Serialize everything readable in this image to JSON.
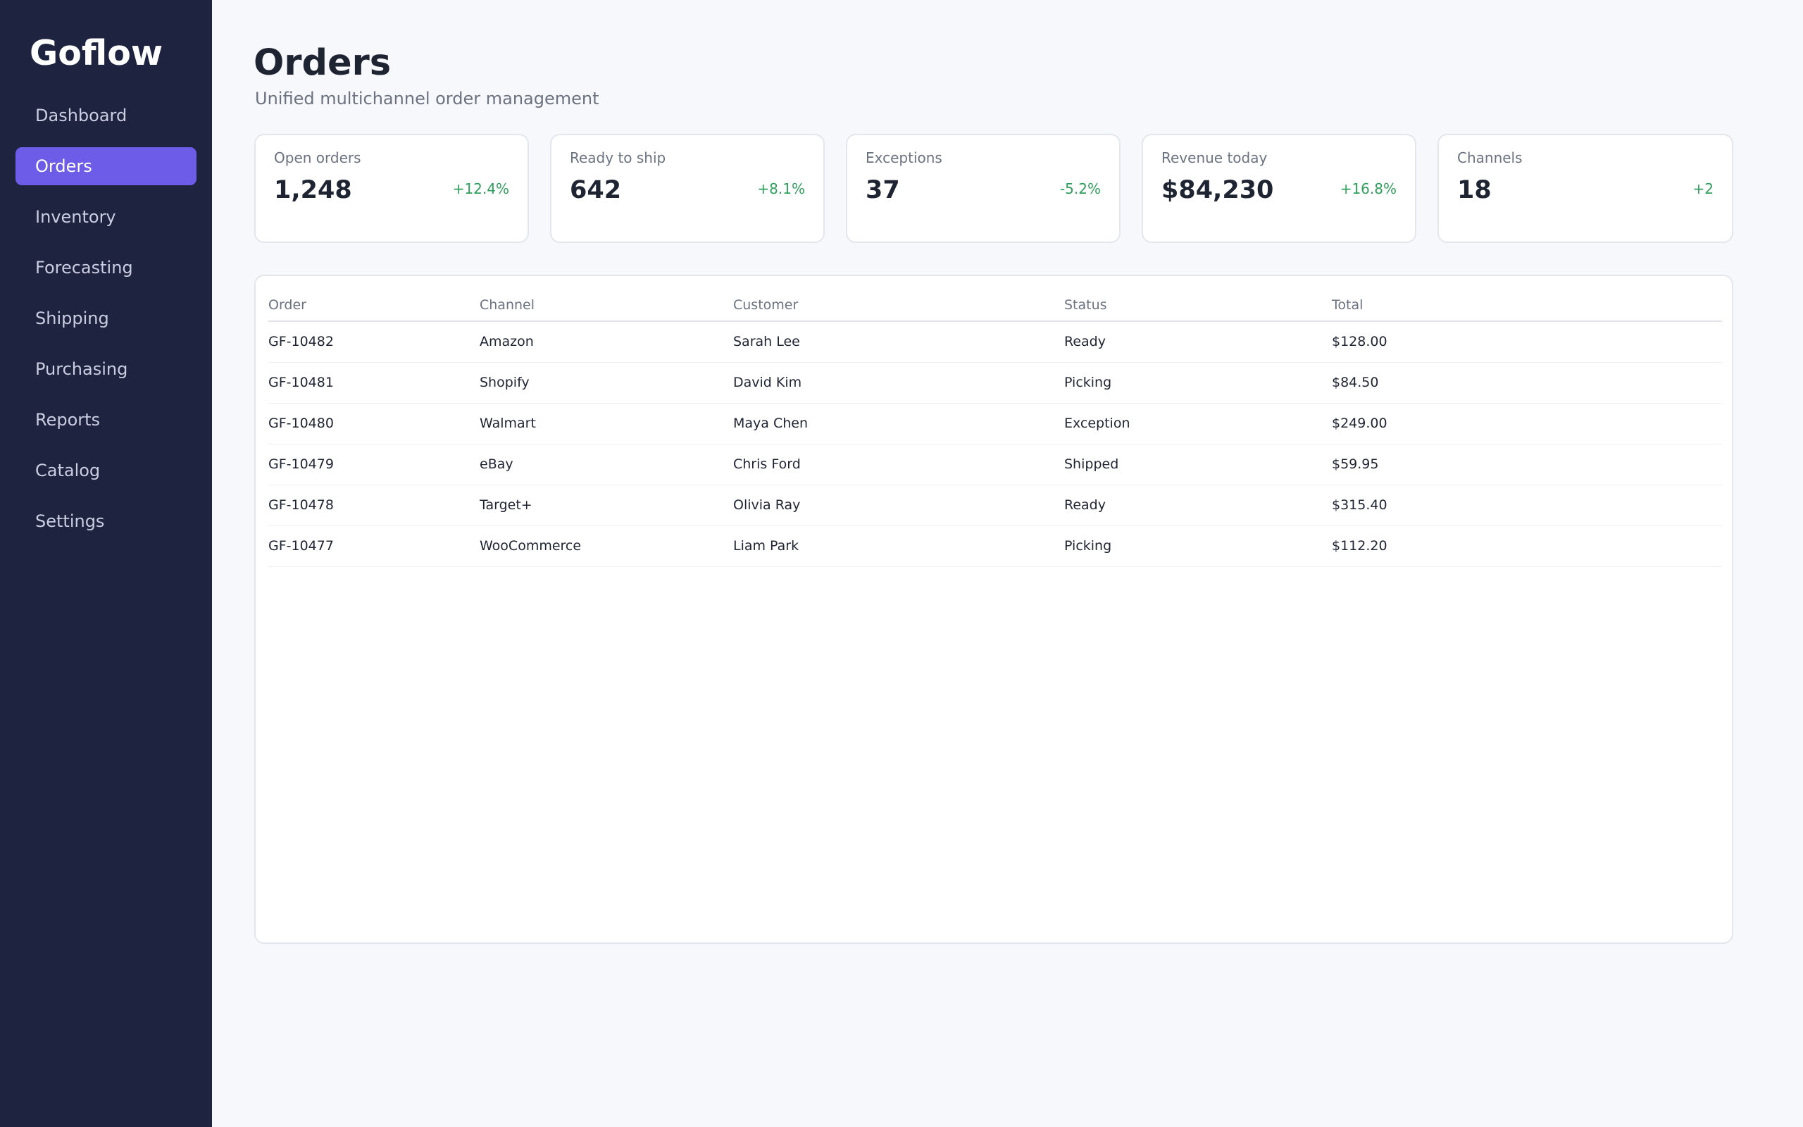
{
  "sidebar": {
    "brand": "Goflow",
    "items": [
      {
        "label": "Dashboard",
        "active": false
      },
      {
        "label": "Orders",
        "active": true
      },
      {
        "label": "Inventory",
        "active": false
      },
      {
        "label": "Forecasting",
        "active": false
      },
      {
        "label": "Shipping",
        "active": false
      },
      {
        "label": "Purchasing",
        "active": false
      },
      {
        "label": "Reports",
        "active": false
      },
      {
        "label": "Catalog",
        "active": false
      },
      {
        "label": "Settings",
        "active": false
      }
    ]
  },
  "header": {
    "title": "Orders",
    "subtitle": "Unified multichannel order management"
  },
  "kpis": [
    {
      "label": "Open orders",
      "value": "1,248",
      "delta": "+12.4%"
    },
    {
      "label": "Ready to ship",
      "value": "642",
      "delta": "+8.1%"
    },
    {
      "label": "Exceptions",
      "value": "37",
      "delta": "-5.2%"
    },
    {
      "label": "Revenue today",
      "value": "$84,230",
      "delta": "+16.8%"
    },
    {
      "label": "Channels",
      "value": "18",
      "delta": "+2"
    }
  ],
  "table": {
    "columns": [
      "Order",
      "Channel",
      "Customer",
      "Status",
      "Total"
    ],
    "rows": [
      [
        "GF-10482",
        "Amazon",
        "Sarah Lee",
        "Ready",
        "$128.00"
      ],
      [
        "GF-10481",
        "Shopify",
        "David Kim",
        "Picking",
        "$84.50"
      ],
      [
        "GF-10480",
        "Walmart",
        "Maya Chen",
        "Exception",
        "$249.00"
      ],
      [
        "GF-10479",
        "eBay",
        "Chris Ford",
        "Shipped",
        "$59.95"
      ],
      [
        "GF-10478",
        "Target+",
        "Olivia Ray",
        "Ready",
        "$315.40"
      ],
      [
        "GF-10477",
        "WooCommerce",
        "Liam Park",
        "Picking",
        "$112.20"
      ]
    ]
  },
  "colors": {
    "sidebar_bg": "#1e2440",
    "accent": "#6c5ce7",
    "positive": "#2f9e5b"
  }
}
